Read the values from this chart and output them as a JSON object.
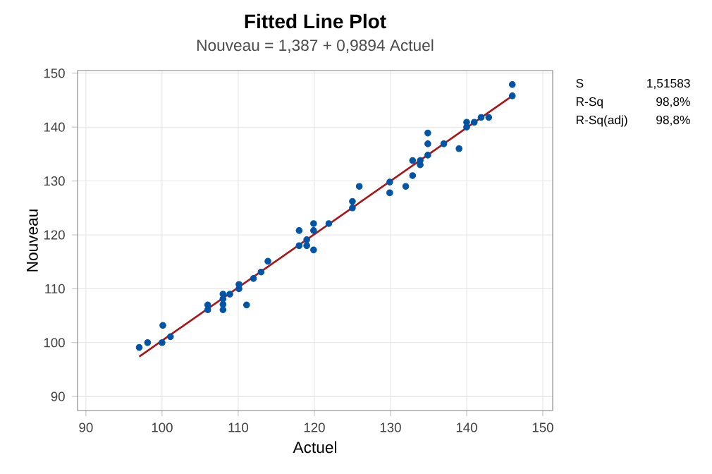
{
  "chart_data": {
    "type": "scatter",
    "title": "Fitted Line Plot",
    "subtitle": "Nouveau = 1,387 + 0,9894 Actuel",
    "xlabel": "Actuel",
    "ylabel": "Nouveau",
    "series": [
      {
        "marker": "circle",
        "color": "#0054a6",
        "x": [
          97.0,
          98.1,
          100.1,
          100,
          101.1,
          106,
          106,
          108,
          108,
          108,
          108,
          108.9,
          110.1,
          110.1,
          111.1,
          112,
          113,
          113.9,
          118,
          118,
          119,
          119,
          119.9,
          119.9,
          119.9,
          121.9,
          125,
          125,
          125.9,
          129.9,
          129.9,
          132,
          132.9,
          132.9,
          133.9,
          133.9,
          134.9,
          134.9,
          134.9,
          137,
          139,
          140,
          140,
          141,
          141.9,
          142.9,
          146,
          146
        ],
        "values": [
          99.1,
          100,
          103.2,
          100,
          101.1,
          107,
          106.1,
          109,
          108.1,
          107.1,
          106.1,
          109,
          110.8,
          110,
          107,
          111.9,
          113.1,
          115.1,
          120.8,
          118,
          119.1,
          118,
          122.1,
          120.8,
          117.2,
          122.1,
          126.2,
          125,
          129,
          129.8,
          127.8,
          129,
          131,
          133.8,
          133.8,
          133,
          134.8,
          136.9,
          138.9,
          136.9,
          136,
          140,
          140.9,
          140.9,
          141.8,
          141.8,
          145.8,
          147.9
        ]
      },
      {
        "type": "line",
        "marker": "none",
        "color": "#a6171c",
        "x": [
          97,
          146
        ],
        "values": [
          97.4,
          145.8
        ]
      }
    ],
    "grid": true,
    "xlim": [
      88.9,
      151.3
    ],
    "ylim": [
      87.4,
      150.5
    ],
    "xticks": [
      90,
      100,
      110,
      120,
      130,
      140,
      150
    ],
    "yticks": [
      90,
      100,
      110,
      120,
      130,
      140,
      150
    ],
    "annotations": [
      "S",
      "1,51583",
      "R-Sq",
      "98,8%",
      "R-Sq(adj)",
      "98,8%"
    ]
  }
}
